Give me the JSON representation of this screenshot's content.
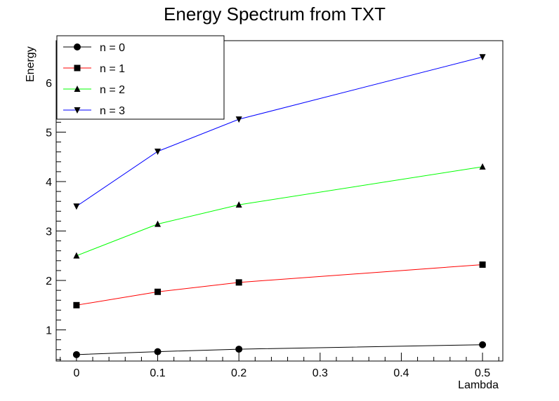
{
  "chart_data": {
    "type": "line",
    "title": "Energy Spectrum from TXT",
    "xlabel": "Lambda",
    "ylabel": "Energy",
    "xlim": [
      -0.025,
      0.525
    ],
    "ylim": [
      0.37,
      6.85
    ],
    "xticks": [
      "0",
      "0.1",
      "0.2",
      "0.3",
      "0.4",
      "0.5"
    ],
    "yticks": [
      "1",
      "2",
      "3",
      "4",
      "5",
      "6"
    ],
    "grid": false,
    "legend_position": "top-left",
    "x": [
      0,
      0.1,
      0.2,
      0.5
    ],
    "series": [
      {
        "name": "n = 0",
        "color": "#000000",
        "marker": "circle",
        "values": [
          0.5,
          0.56,
          0.61,
          0.7
        ]
      },
      {
        "name": "n = 1",
        "color": "#ff0000",
        "marker": "square",
        "values": [
          1.5,
          1.77,
          1.96,
          2.32
        ]
      },
      {
        "name": "n = 2",
        "color": "#00ff00",
        "marker": "triangle-up",
        "values": [
          2.5,
          3.14,
          3.53,
          4.3
        ]
      },
      {
        "name": "n = 3",
        "color": "#0000ff",
        "marker": "triangle-down",
        "values": [
          3.5,
          4.61,
          5.26,
          6.52
        ]
      }
    ]
  }
}
